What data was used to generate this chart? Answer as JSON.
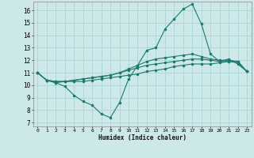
{
  "xlabel": "Humidex (Indice chaleur)",
  "bg_color": "#cce8e8",
  "grid_color": "#aad4d4",
  "line_color": "#1a7a6e",
  "xlim": [
    -0.5,
    23.5
  ],
  "ylim": [
    6.7,
    16.7
  ],
  "yticks": [
    7,
    8,
    9,
    10,
    11,
    12,
    13,
    14,
    15,
    16
  ],
  "xticks": [
    0,
    1,
    2,
    3,
    4,
    5,
    6,
    7,
    8,
    9,
    10,
    11,
    12,
    13,
    14,
    15,
    16,
    17,
    18,
    19,
    20,
    21,
    22,
    23
  ],
  "series": [
    [
      11.0,
      10.4,
      10.2,
      9.9,
      9.2,
      8.7,
      8.4,
      7.7,
      7.4,
      8.6,
      10.5,
      11.6,
      12.8,
      13.0,
      14.5,
      15.3,
      16.1,
      16.5,
      14.9,
      12.5,
      11.9,
      12.1,
      11.7,
      11.1
    ],
    [
      11.0,
      10.4,
      10.2,
      10.3,
      10.3,
      10.3,
      10.4,
      10.5,
      10.6,
      10.7,
      10.8,
      10.9,
      11.1,
      11.2,
      11.3,
      11.5,
      11.6,
      11.7,
      11.7,
      11.7,
      11.8,
      11.9,
      11.9,
      11.1
    ],
    [
      11.0,
      10.4,
      10.3,
      10.3,
      10.4,
      10.5,
      10.6,
      10.7,
      10.8,
      11.0,
      11.2,
      11.4,
      11.6,
      11.7,
      11.8,
      11.9,
      12.0,
      12.1,
      12.1,
      12.0,
      11.9,
      11.9,
      11.8,
      11.1
    ],
    [
      11.0,
      10.4,
      10.3,
      10.3,
      10.4,
      10.5,
      10.6,
      10.7,
      10.8,
      11.0,
      11.3,
      11.6,
      11.9,
      12.1,
      12.2,
      12.3,
      12.4,
      12.5,
      12.3,
      12.1,
      12.0,
      12.0,
      11.9,
      11.1
    ]
  ]
}
